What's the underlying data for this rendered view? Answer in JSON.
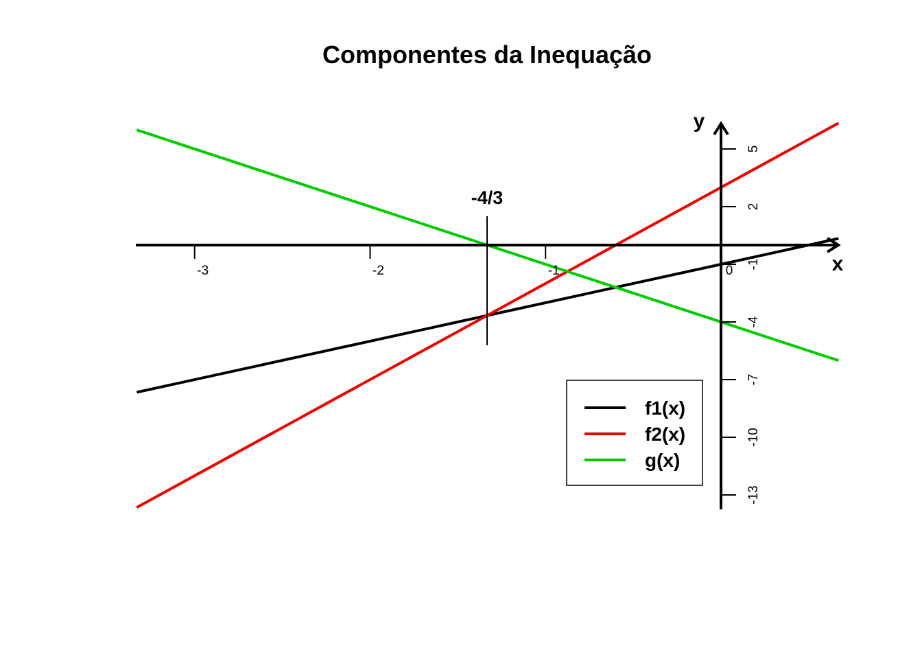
{
  "chart_data": {
    "type": "line",
    "title": "Componentes da Inequação",
    "xlabel": "x",
    "ylabel": "y",
    "xlim": [
      -3.33,
      0.67
    ],
    "ylim": [
      -13.5,
      6.5
    ],
    "x_ticks": [
      -3,
      -2,
      -1,
      0
    ],
    "x_tick_labels": [
      "-3",
      "-2",
      "-1",
      "0"
    ],
    "y_ticks": [
      5,
      2,
      -1,
      -4,
      -7,
      -10,
      -13
    ],
    "y_tick_labels": [
      "5",
      "2",
      "-1",
      "-4",
      "-7",
      "-10",
      "-13"
    ],
    "x_range": [
      -3.33,
      0.67
    ],
    "series": [
      {
        "name": "f1(x)",
        "color": "#000000",
        "slope": 2,
        "intercept": -1
      },
      {
        "name": "f2(x)",
        "color": "#ee0000",
        "slope": 5,
        "intercept": 3
      },
      {
        "name": "g(x)",
        "color": "#00cc00",
        "slope": -3,
        "intercept": -4
      }
    ],
    "marker": {
      "x": -1.3333,
      "label": "-4/3"
    },
    "legend": {
      "position": "bottom-right",
      "entries": [
        "f1(x)",
        "f2(x)",
        "g(x)"
      ]
    }
  }
}
